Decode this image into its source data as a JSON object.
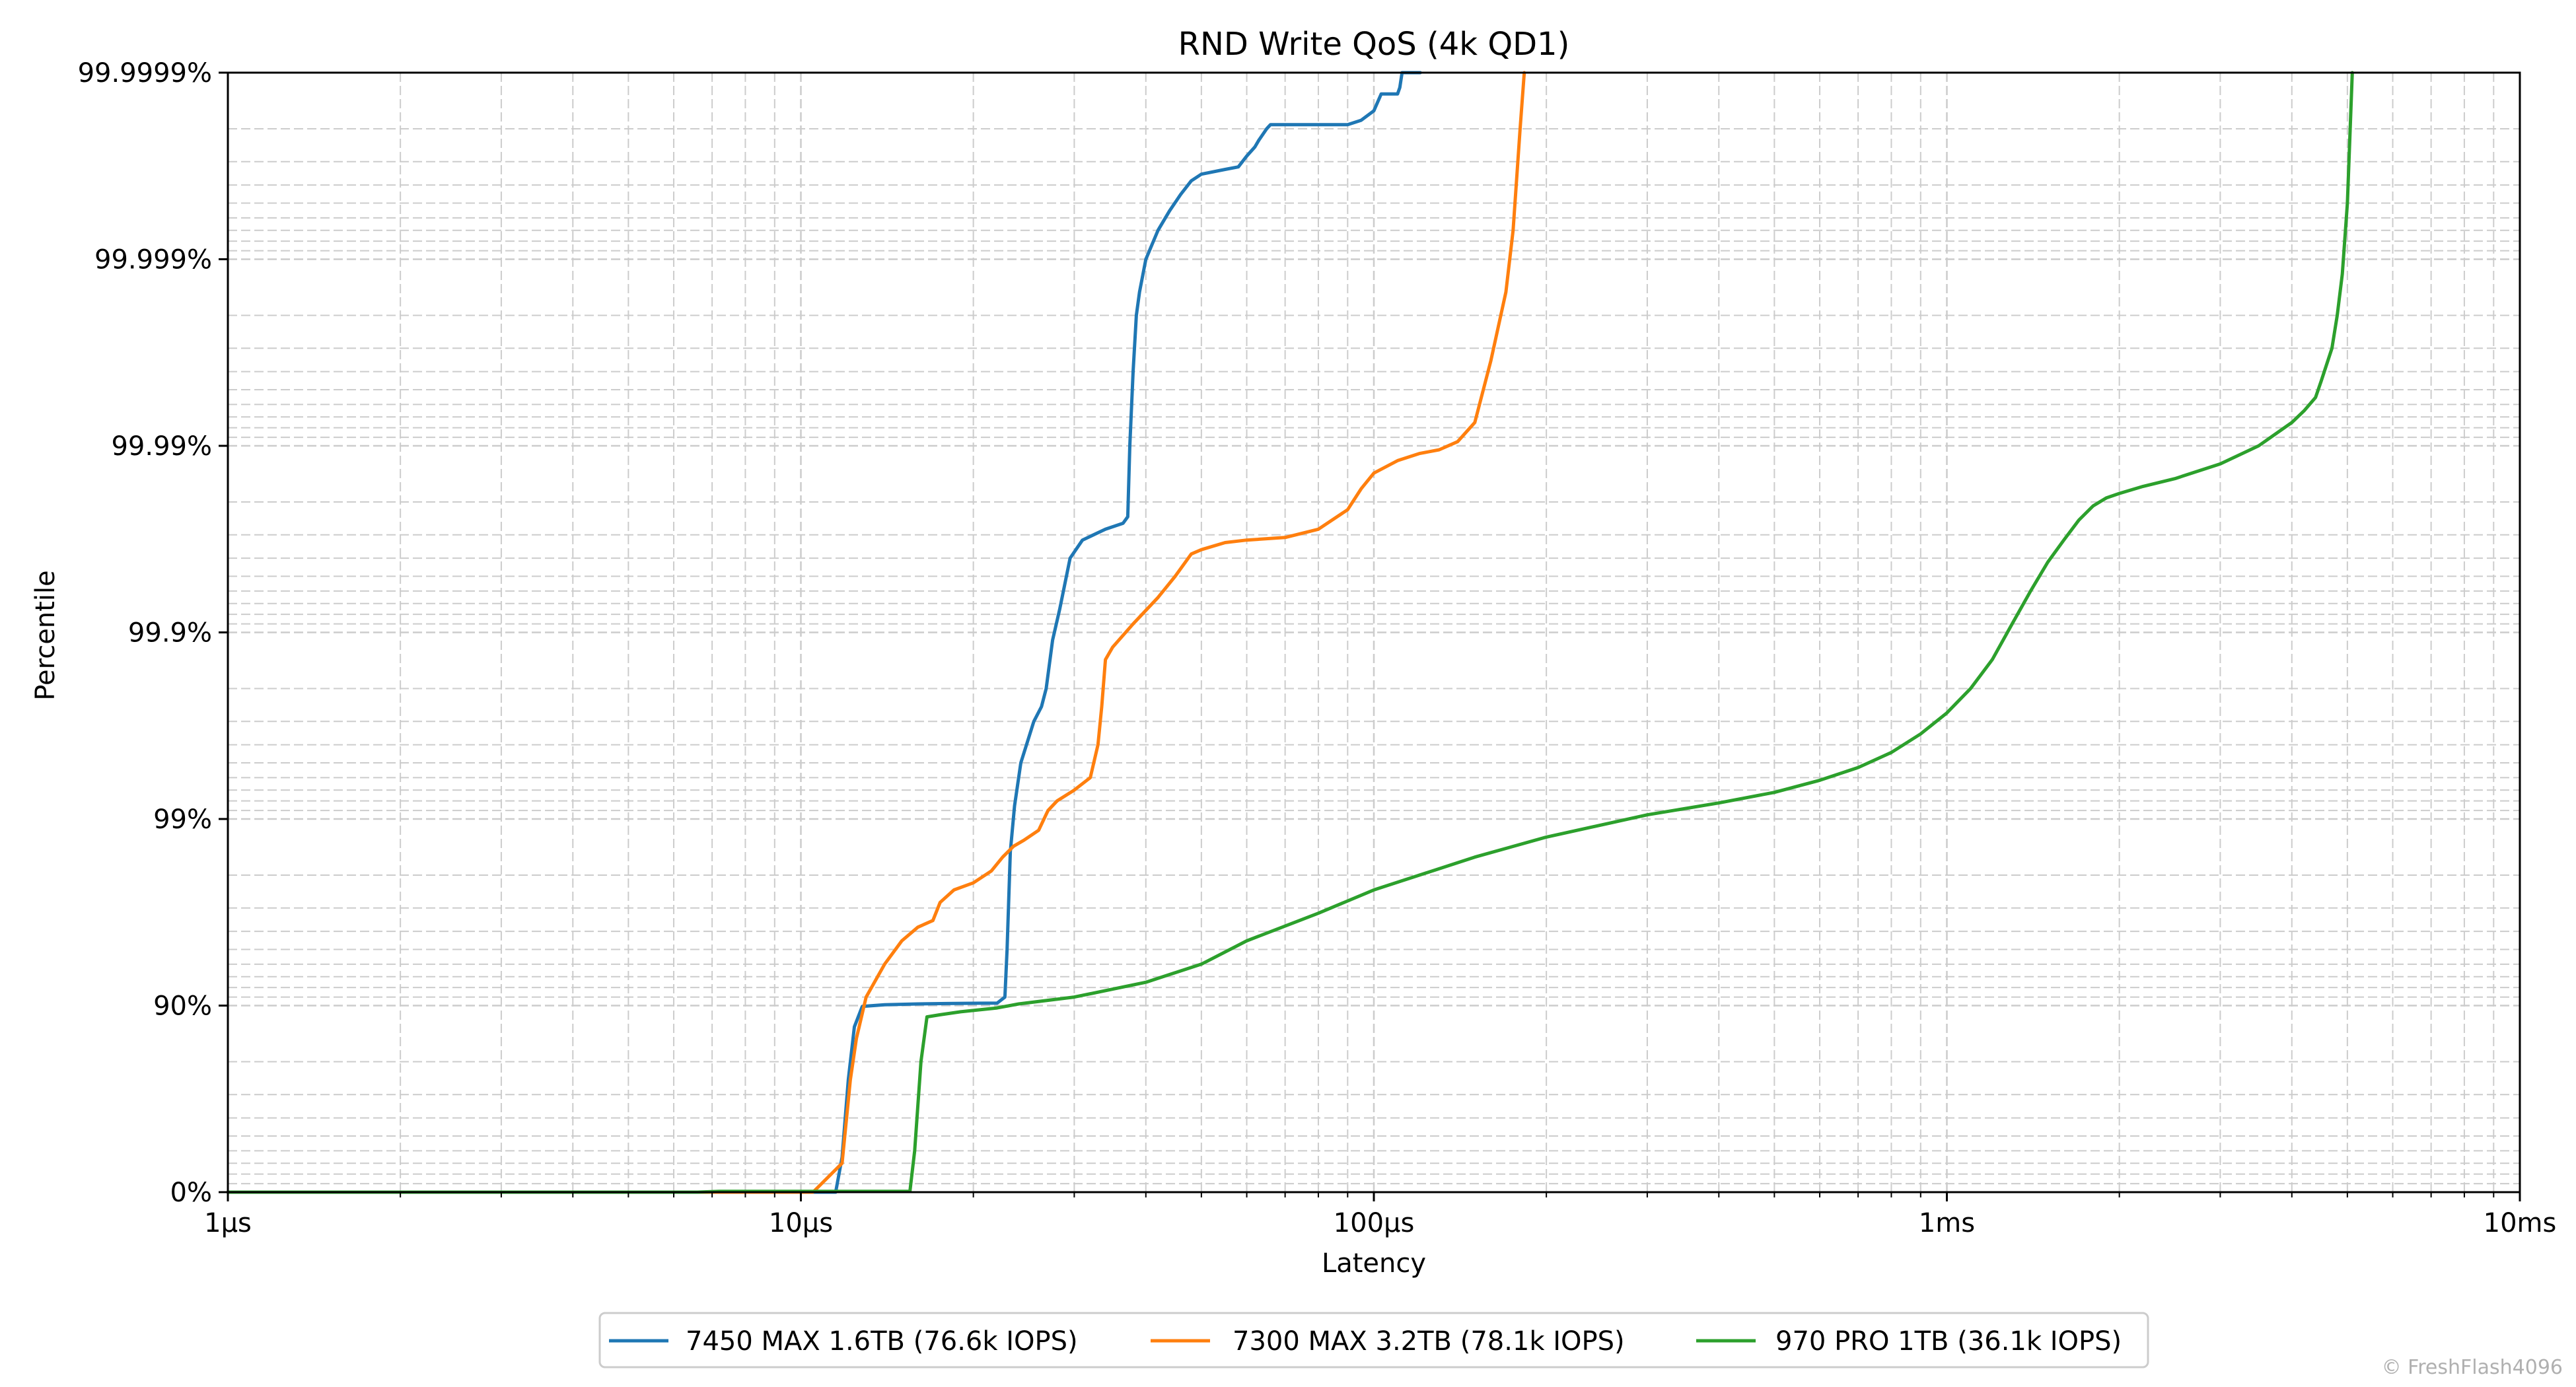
{
  "chart_data": {
    "type": "line",
    "title": "RND Write QoS (4k QD1)",
    "xlabel": "Latency",
    "ylabel": "Percentile",
    "x_scale": "log",
    "y_scale": "nines",
    "xlim": [
      1,
      10000
    ],
    "ylim": [
      0,
      99.9999
    ],
    "x_ticks": [
      {
        "value": 1,
        "label": "1µs"
      },
      {
        "value": 10,
        "label": "10µs"
      },
      {
        "value": 100,
        "label": "100µs"
      },
      {
        "value": 1000,
        "label": "1ms"
      },
      {
        "value": 10000,
        "label": "10ms"
      }
    ],
    "y_ticks": [
      {
        "value": 0,
        "label": "0%"
      },
      {
        "value": 90,
        "label": "90%"
      },
      {
        "value": 99,
        "label": "99%"
      },
      {
        "value": 99.9,
        "label": "99.9%"
      },
      {
        "value": 99.99,
        "label": "99.99%"
      },
      {
        "value": 99.999,
        "label": "99.999%"
      },
      {
        "value": 99.9999,
        "label": "99.9999%"
      }
    ],
    "grid": true,
    "legend_position": "bottom-center",
    "series": [
      {
        "name": "7450 MAX 1.6TB (76.6k IOPS)",
        "color": "#1f77b4",
        "x": [
          1,
          11.5,
          11.8,
          12.1,
          12.4,
          12.8,
          14,
          16,
          18,
          20,
          22,
          22.7,
          22.9,
          23.2,
          23.6,
          24.2,
          25.5,
          26.3,
          26.8,
          27.5,
          28.3,
          29.5,
          31,
          34,
          36.5,
          37.2,
          37.5,
          38,
          38.5,
          39,
          40,
          42,
          44,
          46,
          48,
          50,
          55,
          58,
          60,
          62,
          63,
          65,
          66,
          68,
          72,
          80,
          90,
          95,
          100,
          103,
          110,
          111,
          112,
          114,
          116,
          119,
          120.5
        ],
        "y": [
          0,
          0,
          35,
          75,
          87,
          89.9,
          90.1,
          90.2,
          90.25,
          90.28,
          90.3,
          91,
          95,
          98.5,
          99.15,
          99.5,
          99.7,
          99.75,
          99.8,
          99.89,
          99.925,
          99.96,
          99.968,
          99.972,
          99.974,
          99.976,
          99.99,
          99.996,
          99.998,
          99.9985,
          99.999,
          99.9993,
          99.99945,
          99.99955,
          99.99962,
          99.99965,
          99.99967,
          99.99968,
          99.99972,
          99.99975,
          99.99977,
          99.9998,
          99.99981,
          99.99981,
          99.99981,
          99.99981,
          99.99981,
          99.99982,
          99.99984,
          99.99987,
          99.99987,
          99.99988,
          99.9999,
          99.99992,
          99.99995,
          99.99997,
          99.9999
        ]
      },
      {
        "name": "7300 MAX 3.2TB (78.1k IOPS)",
        "color": "#ff7f0e",
        "x": [
          1,
          10.5,
          11.8,
          12.2,
          12.5,
          13,
          14,
          15,
          16,
          17,
          17.5,
          18.5,
          20,
          21.5,
          22.5,
          23.5,
          24.5,
          26,
          27,
          28,
          30,
          32,
          33,
          33.5,
          34,
          35,
          38,
          42,
          45,
          48,
          50,
          55,
          60,
          70,
          80,
          90,
          95,
          100,
          110,
          120,
          130,
          140,
          150,
          160,
          170,
          175,
          180,
          183
        ],
        "y": [
          0,
          0,
          30,
          75,
          85,
          91,
          94,
          95.5,
          96.2,
          96.5,
          97.2,
          97.6,
          97.8,
          98.1,
          98.4,
          98.6,
          98.7,
          98.85,
          99.1,
          99.2,
          99.3,
          99.4,
          99.6,
          99.75,
          99.86,
          99.88,
          99.91,
          99.935,
          99.95,
          99.962,
          99.964,
          99.967,
          99.968,
          99.969,
          99.972,
          99.978,
          99.983,
          99.986,
          99.988,
          99.989,
          99.9895,
          99.9905,
          99.9925,
          99.9965,
          99.9985,
          99.9993,
          99.9998,
          99.9999
        ]
      },
      {
        "name": "970 PRO 1TB (36.1k IOPS)",
        "color": "#2ca02c",
        "x": [
          1,
          6.6,
          7.2,
          10,
          12,
          14,
          15.5,
          15.8,
          16.2,
          16.6,
          17.5,
          19,
          22,
          24,
          30,
          40,
          50,
          60,
          80,
          100,
          150,
          200,
          300,
          400,
          500,
          600,
          700,
          800,
          900,
          1000,
          1100,
          1200,
          1300,
          1400,
          1500,
          1600,
          1700,
          1800,
          1900,
          2000,
          2200,
          2500,
          3000,
          3500,
          4000,
          4200,
          4400,
          4500,
          4700,
          4800,
          4900,
          5000,
          5100
        ],
        "y": [
          0,
          0,
          1,
          1,
          1,
          1,
          1,
          40,
          80,
          88.5,
          88.8,
          89.2,
          89.7,
          90.2,
          91,
          92.5,
          94,
          95.5,
          96.8,
          97.6,
          98.4,
          98.75,
          99.05,
          99.18,
          99.28,
          99.38,
          99.47,
          99.56,
          99.65,
          99.73,
          99.8,
          99.86,
          99.91,
          99.94,
          99.958,
          99.968,
          99.975,
          99.979,
          99.981,
          99.982,
          99.9835,
          99.985,
          99.9875,
          99.99,
          99.9925,
          99.9935,
          99.9945,
          99.9955,
          99.997,
          99.998,
          99.9988,
          99.9995,
          99.9999
        ]
      }
    ],
    "watermark": "© FreshFlash4096"
  }
}
